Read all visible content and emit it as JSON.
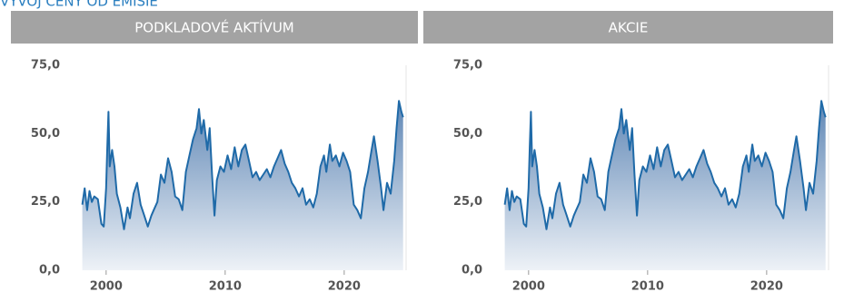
{
  "heading": "VÝVOJ CENY OD EMISIE",
  "chart_data": [
    {
      "type": "area",
      "title": "PODKLADOVÉ AKTÍVUM",
      "series": [
        {
          "color": "#1f6aa8",
          "x": [
            1998.0,
            1998.2,
            1998.4,
            1998.6,
            1998.8,
            1999.0,
            1999.3,
            1999.6,
            1999.8,
            2000.0,
            2000.1,
            2000.2,
            2000.3,
            2000.5,
            2000.7,
            2000.9,
            2001.2,
            2001.5,
            2001.8,
            2002.0,
            2002.3,
            2002.6,
            2002.9,
            2003.2,
            2003.5,
            2003.8,
            2004.0,
            2004.3,
            2004.6,
            2004.9,
            2005.2,
            2005.5,
            2005.8,
            2006.1,
            2006.4,
            2006.7,
            2007.0,
            2007.3,
            2007.6,
            2007.8,
            2008.0,
            2008.2,
            2008.5,
            2008.7,
            2008.9,
            2009.1,
            2009.3,
            2009.6,
            2009.9,
            2010.2,
            2010.5,
            2010.8,
            2011.1,
            2011.4,
            2011.7,
            2012.0,
            2012.3,
            2012.6,
            2012.9,
            2013.2,
            2013.5,
            2013.8,
            2014.1,
            2014.4,
            2014.7,
            2015.0,
            2015.3,
            2015.6,
            2015.9,
            2016.2,
            2016.5,
            2016.8,
            2017.1,
            2017.4,
            2017.7,
            2018.0,
            2018.3,
            2018.5,
            2018.8,
            2019.0,
            2019.3,
            2019.6,
            2019.9,
            2020.2,
            2020.5,
            2020.8,
            2021.1,
            2021.4,
            2021.7,
            2022.0,
            2022.3,
            2022.5,
            2022.8,
            2023.1,
            2023.3,
            2023.6,
            2023.9,
            2024.2,
            2024.4,
            2024.6,
            2024.8,
            2024.95
          ],
          "values": [
            24,
            30,
            22,
            29,
            25,
            27,
            26,
            17,
            16,
            30,
            45,
            58,
            38,
            44,
            38,
            28,
            23,
            15,
            23,
            19,
            28,
            32,
            24,
            20,
            16,
            20,
            22,
            25,
            35,
            32,
            41,
            36,
            27,
            26,
            22,
            36,
            42,
            48,
            52,
            59,
            50,
            55,
            44,
            52,
            35,
            20,
            33,
            38,
            36,
            42,
            37,
            45,
            38,
            44,
            46,
            40,
            34,
            36,
            33,
            35,
            37,
            34,
            38,
            41,
            44,
            39,
            36,
            32,
            30,
            27,
            30,
            24,
            26,
            23,
            28,
            38,
            42,
            36,
            46,
            40,
            42,
            38,
            43,
            40,
            36,
            24,
            22,
            19,
            30,
            36,
            44,
            49,
            40,
            30,
            22,
            32,
            28,
            40,
            52,
            62,
            58,
            56
          ]
        }
      ],
      "xlim": [
        1997.8,
        2025.2
      ],
      "xticks": [
        2000,
        2010,
        2020
      ],
      "ylim": [
        0,
        75
      ],
      "yticks": [
        {
          "value": 0,
          "label": "0,0"
        },
        {
          "value": 25,
          "label": "25,0"
        },
        {
          "value": 50,
          "label": "50,0"
        },
        {
          "value": 75,
          "label": "75,0"
        }
      ]
    },
    {
      "type": "area",
      "title": "AKCIE",
      "series": [
        {
          "color": "#1f6aa8",
          "x": [
            1998.0,
            1998.2,
            1998.4,
            1998.6,
            1998.8,
            1999.0,
            1999.3,
            1999.6,
            1999.8,
            2000.0,
            2000.1,
            2000.2,
            2000.3,
            2000.5,
            2000.7,
            2000.9,
            2001.2,
            2001.5,
            2001.8,
            2002.0,
            2002.3,
            2002.6,
            2002.9,
            2003.2,
            2003.5,
            2003.8,
            2004.0,
            2004.3,
            2004.6,
            2004.9,
            2005.2,
            2005.5,
            2005.8,
            2006.1,
            2006.4,
            2006.7,
            2007.0,
            2007.3,
            2007.6,
            2007.8,
            2008.0,
            2008.2,
            2008.5,
            2008.7,
            2008.9,
            2009.1,
            2009.3,
            2009.6,
            2009.9,
            2010.2,
            2010.5,
            2010.8,
            2011.1,
            2011.4,
            2011.7,
            2012.0,
            2012.3,
            2012.6,
            2012.9,
            2013.2,
            2013.5,
            2013.8,
            2014.1,
            2014.4,
            2014.7,
            2015.0,
            2015.3,
            2015.6,
            2015.9,
            2016.2,
            2016.5,
            2016.8,
            2017.1,
            2017.4,
            2017.7,
            2018.0,
            2018.3,
            2018.5,
            2018.8,
            2019.0,
            2019.3,
            2019.6,
            2019.9,
            2020.2,
            2020.5,
            2020.8,
            2021.1,
            2021.4,
            2021.7,
            2022.0,
            2022.3,
            2022.5,
            2022.8,
            2023.1,
            2023.3,
            2023.6,
            2023.9,
            2024.2,
            2024.4,
            2024.6,
            2024.8,
            2024.95
          ],
          "values": [
            24,
            30,
            22,
            29,
            25,
            27,
            26,
            17,
            16,
            30,
            45,
            58,
            38,
            44,
            38,
            28,
            23,
            15,
            23,
            19,
            28,
            32,
            24,
            20,
            16,
            20,
            22,
            25,
            35,
            32,
            41,
            36,
            27,
            26,
            22,
            36,
            42,
            48,
            52,
            59,
            50,
            55,
            44,
            52,
            35,
            20,
            33,
            38,
            36,
            42,
            37,
            45,
            38,
            44,
            46,
            40,
            34,
            36,
            33,
            35,
            37,
            34,
            38,
            41,
            44,
            39,
            36,
            32,
            30,
            27,
            30,
            24,
            26,
            23,
            28,
            38,
            42,
            36,
            46,
            40,
            42,
            38,
            43,
            40,
            36,
            24,
            22,
            19,
            30,
            36,
            44,
            49,
            40,
            30,
            22,
            32,
            28,
            40,
            52,
            62,
            58,
            56
          ]
        }
      ],
      "xlim": [
        1997.8,
        2025.2
      ],
      "xticks": [
        2000,
        2010,
        2020
      ],
      "ylim": [
        0,
        75
      ],
      "yticks": [
        {
          "value": 0,
          "label": "0,0"
        },
        {
          "value": 25,
          "label": "25,0"
        },
        {
          "value": 50,
          "label": "50,0"
        },
        {
          "value": 75,
          "label": "75,0"
        }
      ]
    }
  ]
}
